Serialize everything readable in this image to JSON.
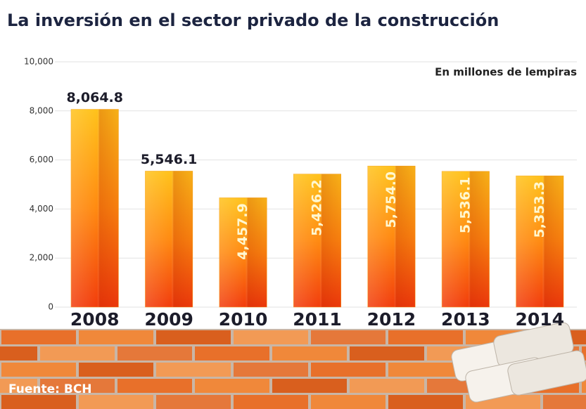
{
  "chart_data": {
    "type": "bar",
    "title": "La inversión en el sector privado de la construcción",
    "subtitle": "En millones de lempiras",
    "source": "Fuente: BCH",
    "categories": [
      "2008",
      "2009",
      "2010",
      "2011",
      "2012",
      "2013",
      "2014"
    ],
    "values": [
      8064.8,
      5546.1,
      4457.9,
      5426.2,
      5754.0,
      5536.1,
      5353.3
    ],
    "value_labels": [
      "8,064.8",
      "5,546.1",
      "4,457.9",
      "5,426.2",
      "5,754.0",
      "5,536.1",
      "5,353.3"
    ],
    "color": "#f7a21a",
    "ylim": [
      0,
      10000
    ],
    "yticks": [
      0,
      {
        "value": 2000,
        "label": "2,000"
      },
      {
        "value": 4000,
        "label": "4,000"
      },
      {
        "value": 6000,
        "label": "6,000"
      },
      {
        "value": 8000,
        "label": "8,000"
      },
      {
        "value": 10000,
        "label": "10,000"
      }
    ],
    "grid": true
  }
}
